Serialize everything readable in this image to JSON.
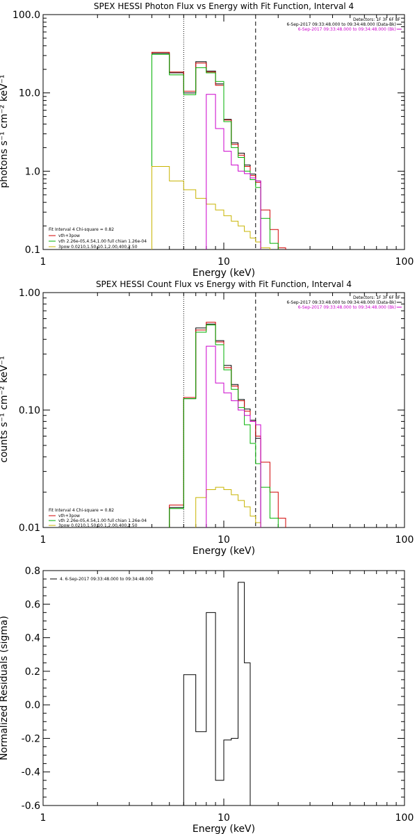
{
  "chart_data": [
    {
      "type": "line",
      "title": "SPEX HESSI Photon Flux vs Energy with Fit Function, Interval 4",
      "xlabel": "Energy (keV)",
      "ylabel": "photons s⁻¹ cm⁻² keV⁻¹",
      "xscale": "log",
      "yscale": "log",
      "xlim": [
        1,
        100
      ],
      "ylim": [
        0.1,
        100
      ],
      "x_ticks": [
        "1",
        "10",
        "100"
      ],
      "y_ticks": [
        "0.1",
        "1.0",
        "10.0",
        "100.0"
      ],
      "header_lines": [
        {
          "text": "Detectors: 1F 3F 6F 8F",
          "color": "#000000"
        },
        {
          "text": "6-Sep-2017 09:33:48.000 to 09:34:48.000 (Data-Bk)",
          "color": "#000000"
        },
        {
          "text": "6-Sep-2017 09:33:48.000 to 09:34:48.000 (Bk)",
          "color": "#cc00cc"
        }
      ],
      "fit_lines": [
        {
          "text": "Fit Interval  4    Chi-square = 0.82",
          "color": "#000000"
        },
        {
          "text": "vth+3pow",
          "color": "#d00000"
        },
        {
          "text": "vth 2.26e-05,4.54,1.00  full chian 1.26e-04",
          "color": "#00b000"
        },
        {
          "text": "3pow 0.0210,1.50,10.1,2.00,400,2.50",
          "color": "#c8b400"
        }
      ],
      "vlines": [
        {
          "x": 6,
          "style": "dotted",
          "color": "#000000"
        },
        {
          "x": 15,
          "style": "dashed",
          "color": "#000000"
        }
      ],
      "edges": [
        4,
        5,
        6,
        7,
        8,
        9,
        10,
        11,
        12,
        13,
        14,
        15,
        16,
        18,
        20,
        22
      ],
      "series": [
        {
          "name": "Data-Bk",
          "color": "#000000",
          "values": [
            32,
            18,
            10,
            25,
            19,
            13,
            4.6,
            2.3,
            1.7,
            1.2,
            0.92,
            0.75,
            null,
            null,
            null
          ]
        },
        {
          "name": "vth+3pow",
          "color": "#d00000",
          "values": [
            33,
            18.5,
            10.5,
            24,
            18.5,
            12.5,
            4.5,
            2.2,
            1.6,
            1.15,
            0.88,
            0.72,
            0.32,
            0.18,
            0.105
          ]
        },
        {
          "name": "vth",
          "color": "#00b000",
          "values": [
            31,
            17,
            9.5,
            21,
            18,
            14,
            4.3,
            2.0,
            1.5,
            1.0,
            0.78,
            0.62,
            0.25,
            0.12,
            null
          ]
        },
        {
          "name": "3pow",
          "color": "#c8b400",
          "values": [
            1.15,
            0.75,
            0.58,
            0.45,
            0.38,
            0.32,
            0.27,
            0.23,
            0.2,
            0.17,
            0.14,
            0.125,
            0.105,
            null,
            null
          ]
        },
        {
          "name": "Bk",
          "color": "#cc00cc",
          "values": [
            null,
            null,
            null,
            null,
            9.6,
            3.5,
            1.8,
            1.2,
            1.0,
            0.93,
            0.82,
            0.75,
            null,
            null,
            null
          ]
        }
      ]
    },
    {
      "type": "line",
      "title": "SPEX HESSI Count Flux vs Energy with Fit Function, Interval 4",
      "xlabel": "Energy (keV)",
      "ylabel": "counts s⁻¹ cm⁻² keV⁻¹",
      "xscale": "log",
      "yscale": "log",
      "xlim": [
        1,
        100
      ],
      "ylim": [
        0.01,
        1
      ],
      "x_ticks": [
        "1",
        "10",
        "100"
      ],
      "y_ticks": [
        "0.01",
        "0.10",
        "1.00"
      ],
      "header_lines": [
        {
          "text": "Detectors: 1F 3F 6F 8F",
          "color": "#000000"
        },
        {
          "text": "6-Sep-2017 09:33:48.000 to 09:34:48.000 (Data-Bk)",
          "color": "#000000"
        },
        {
          "text": "6-Sep-2017 09:33:48.000 to 09:34:48.000 (Bk)",
          "color": "#cc00cc"
        }
      ],
      "fit_lines": [
        {
          "text": "Fit Interval  4    Chi-square = 0.82",
          "color": "#000000"
        },
        {
          "text": "vth+3pow",
          "color": "#d00000"
        },
        {
          "text": "vth 2.26e-05,4.54,1.00  full chian 1.26e-04",
          "color": "#00b000"
        },
        {
          "text": "3pow 0.0210,1.50,10.1,2.00,400,2.50",
          "color": "#c8b400"
        }
      ],
      "vlines": [
        {
          "x": 6,
          "style": "dotted",
          "color": "#000000"
        },
        {
          "x": 15,
          "style": "dashed",
          "color": "#000000"
        }
      ],
      "edges": [
        4,
        5,
        6,
        7,
        8,
        9,
        10,
        11,
        12,
        13,
        14,
        15,
        16,
        18,
        20,
        22
      ],
      "series": [
        {
          "name": "Data-Bk",
          "color": "#000000",
          "values": [
            null,
            0.0148,
            0.125,
            0.5,
            0.54,
            0.39,
            0.24,
            0.165,
            0.123,
            0.102,
            0.082,
            0.0575,
            null,
            null,
            null
          ]
        },
        {
          "name": "vth+3pow",
          "color": "#d00000",
          "values": [
            null,
            0.0155,
            0.128,
            0.48,
            0.56,
            0.38,
            0.23,
            0.16,
            0.12,
            0.098,
            0.08,
            0.06,
            0.036,
            0.02,
            0.012
          ]
        },
        {
          "name": "vth",
          "color": "#00b000",
          "values": [
            null,
            0.0145,
            0.125,
            0.46,
            0.53,
            0.36,
            0.22,
            0.15,
            0.105,
            0.075,
            0.052,
            0.035,
            0.022,
            0.012,
            null
          ]
        },
        {
          "name": "3pow",
          "color": "#c8b400",
          "values": [
            null,
            null,
            null,
            0.018,
            0.021,
            0.022,
            0.021,
            0.019,
            0.017,
            0.015,
            0.0125,
            0.011,
            null,
            null,
            null
          ]
        },
        {
          "name": "Bk",
          "color": "#cc00cc",
          "values": [
            null,
            null,
            null,
            null,
            0.35,
            0.17,
            0.14,
            0.12,
            0.1,
            0.09,
            0.08,
            0.075,
            null,
            null,
            null
          ]
        }
      ]
    },
    {
      "type": "line",
      "title": "",
      "xlabel": "Energy (keV)",
      "ylabel": "Normalized Residuals (sigma)",
      "xscale": "log",
      "yscale": "linear",
      "xlim": [
        1,
        100
      ],
      "ylim": [
        -0.6,
        0.8
      ],
      "x_ticks": [
        "1",
        "10",
        "100"
      ],
      "y_ticks": [
        "-0.6",
        "-0.4",
        "-0.2",
        "0.0",
        "0.2",
        "0.4",
        "0.6",
        "0.8"
      ],
      "legend": "4.  6-Sep-2017 09:33:48.000 to 09:34:48.000",
      "edges": [
        6,
        7,
        8,
        9,
        10,
        11,
        12,
        13,
        14,
        15
      ],
      "series": [
        {
          "color": "#000000",
          "values": [
            0.18,
            -0.16,
            0.55,
            -0.45,
            -0.21,
            -0.2,
            0.73,
            0.25,
            null
          ]
        }
      ]
    }
  ]
}
